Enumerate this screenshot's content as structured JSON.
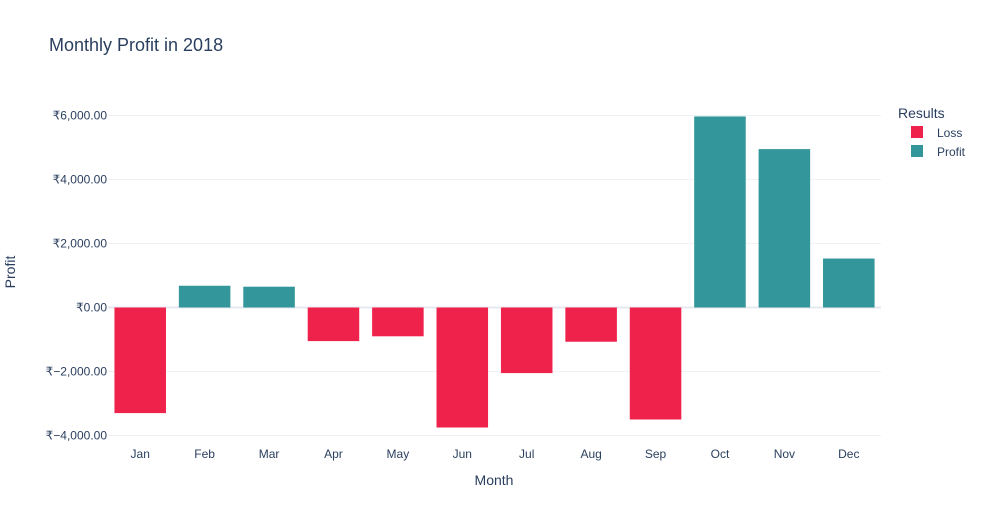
{
  "chart_data": {
    "type": "bar",
    "title": "Monthly Profit in 2018",
    "xlabel": "Month",
    "ylabel": "Profit",
    "categories": [
      "Jan",
      "Feb",
      "Mar",
      "Apr",
      "May",
      "Jun",
      "Jul",
      "Aug",
      "Sep",
      "Oct",
      "Nov",
      "Dec"
    ],
    "values": [
      -3300,
      680,
      650,
      -1050,
      -900,
      -3750,
      -2050,
      -1070,
      -3500,
      5970,
      4950,
      1530
    ],
    "result": [
      "Loss",
      "Profit",
      "Profit",
      "Loss",
      "Loss",
      "Loss",
      "Loss",
      "Loss",
      "Loss",
      "Profit",
      "Profit",
      "Profit"
    ],
    "ylim": [
      -4400,
      7000
    ],
    "yticks": [
      -4000,
      -2000,
      0,
      2000,
      4000,
      6000
    ],
    "ytick_labels": [
      "₹−4,000.00",
      "₹−2,000.00",
      "₹0.00",
      "₹2,000.00",
      "₹4,000.00",
      "₹6,000.00"
    ],
    "grid": true,
    "legend": {
      "title": "Results",
      "placement": "top-right",
      "entries": [
        {
          "name": "Loss",
          "color": "#ef224c"
        },
        {
          "name": "Profit",
          "color": "#32969a"
        }
      ]
    },
    "colors": {
      "Loss": "#ef224c",
      "Profit": "#32969a"
    }
  }
}
